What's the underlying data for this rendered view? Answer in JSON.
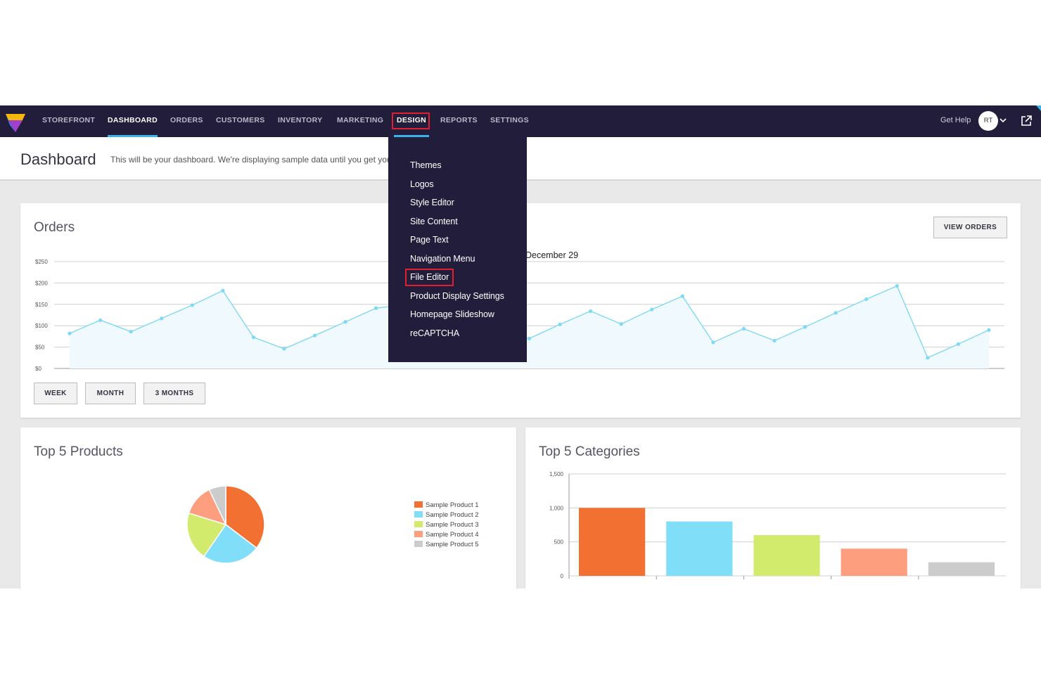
{
  "nav": {
    "items": [
      {
        "label": "STOREFRONT"
      },
      {
        "label": "DASHBOARD"
      },
      {
        "label": "ORDERS"
      },
      {
        "label": "CUSTOMERS"
      },
      {
        "label": "INVENTORY"
      },
      {
        "label": "MARKETING"
      },
      {
        "label": "DESIGN"
      },
      {
        "label": "REPORTS"
      },
      {
        "label": "SETTINGS"
      }
    ],
    "active": "DASHBOARD",
    "open_menu": "DESIGN",
    "get_help": "Get Help",
    "avatar_initials": "RT"
  },
  "header": {
    "title": "Dashboard",
    "subtitle": "This will be your dashboard. We're displaying sample data until you get your first order."
  },
  "design_menu": {
    "items": [
      "Themes",
      "Logos",
      "Style Editor",
      "Site Content",
      "Page Text",
      "Navigation Menu",
      "File Editor",
      "Product Display Settings",
      "Homepage Slideshow",
      "reCAPTCHA"
    ],
    "highlighted": "File Editor"
  },
  "orders": {
    "title": "Orders",
    "view_button": "VIEW ORDERS",
    "tooltip": "December 29",
    "range_buttons": [
      "WEEK",
      "MONTH",
      "3 MONTHS"
    ]
  },
  "products": {
    "title": "Top 5 Products"
  },
  "categories": {
    "title": "Top 5 Categories"
  },
  "colors": {
    "nav_bg": "#211d3b",
    "accent": "#3ab3e9",
    "line": "#7fd9f3",
    "highlight_box": "#e02030",
    "product_1": "#f37033",
    "product_2": "#80def8",
    "product_3": "#d3eb6d",
    "product_4": "#fd9e7f",
    "product_5": "#cccccc"
  },
  "chart_data": [
    {
      "type": "area",
      "yticks": [
        "$250",
        "$200",
        "$150",
        "$100",
        "$50",
        "$0"
      ],
      "ylim": [
        0,
        250
      ],
      "values": [
        82,
        113,
        86,
        117,
        148,
        182,
        73,
        46,
        77,
        109,
        141,
        150,
        155,
        120,
        83,
        70,
        103,
        134,
        104,
        138,
        169,
        61,
        93,
        65,
        97,
        130,
        162,
        193,
        25,
        57,
        90
      ],
      "grid": true
    },
    {
      "type": "pie",
      "labels": [
        "Sample Product 1",
        "Sample Product 2",
        "Sample Product 3",
        "Sample Product 4",
        "Sample Product 5"
      ],
      "values": [
        35,
        24,
        20,
        13,
        7
      ],
      "legend": "right"
    },
    {
      "type": "bar",
      "yticks": [
        "1,500",
        "1,000",
        "500",
        "0"
      ],
      "ylim": [
        0,
        1500
      ],
      "values": [
        1000,
        800,
        600,
        400,
        200
      ],
      "grid": true
    }
  ]
}
